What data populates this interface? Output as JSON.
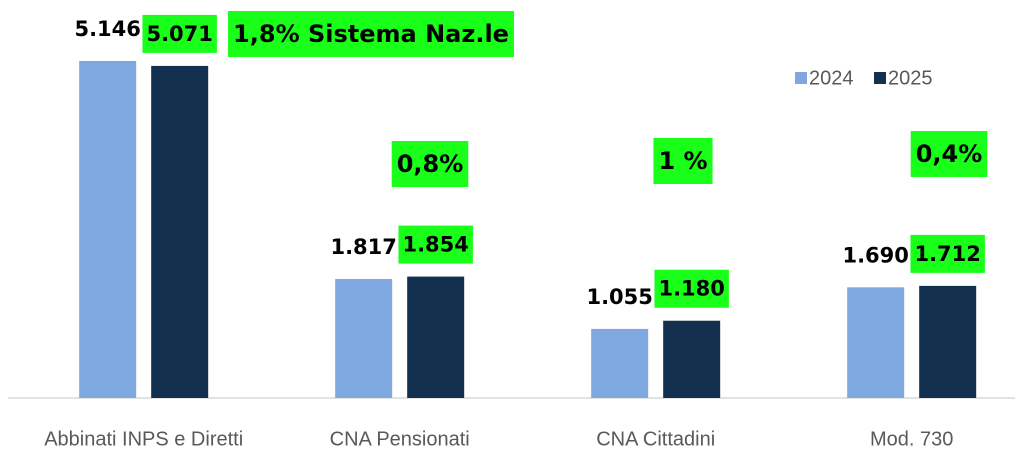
{
  "chart_data": {
    "type": "bar",
    "categories": [
      "Abbinati INPS e Diretti",
      "CNA Pensionati",
      "CNA Cittadini",
      "Mod. 730"
    ],
    "series": [
      {
        "name": "2024",
        "color": "#7fa7e0",
        "values": [
          5146,
          1817,
          1055,
          1690
        ],
        "value_labels": [
          "5.146",
          "1.817",
          "1.055",
          "1.690"
        ]
      },
      {
        "name": "2025",
        "color": "#13304f",
        "values": [
          5071,
          1854,
          1180,
          1712
        ],
        "value_labels": [
          "5.071",
          "1.854",
          "1.180",
          "1.712"
        ]
      }
    ],
    "annotations": [
      "1,8% Sistema Naz.le",
      "0,8%",
      "1 %",
      "0,4%"
    ],
    "highlight_color": "#1aff1a",
    "legend": "top-right"
  }
}
